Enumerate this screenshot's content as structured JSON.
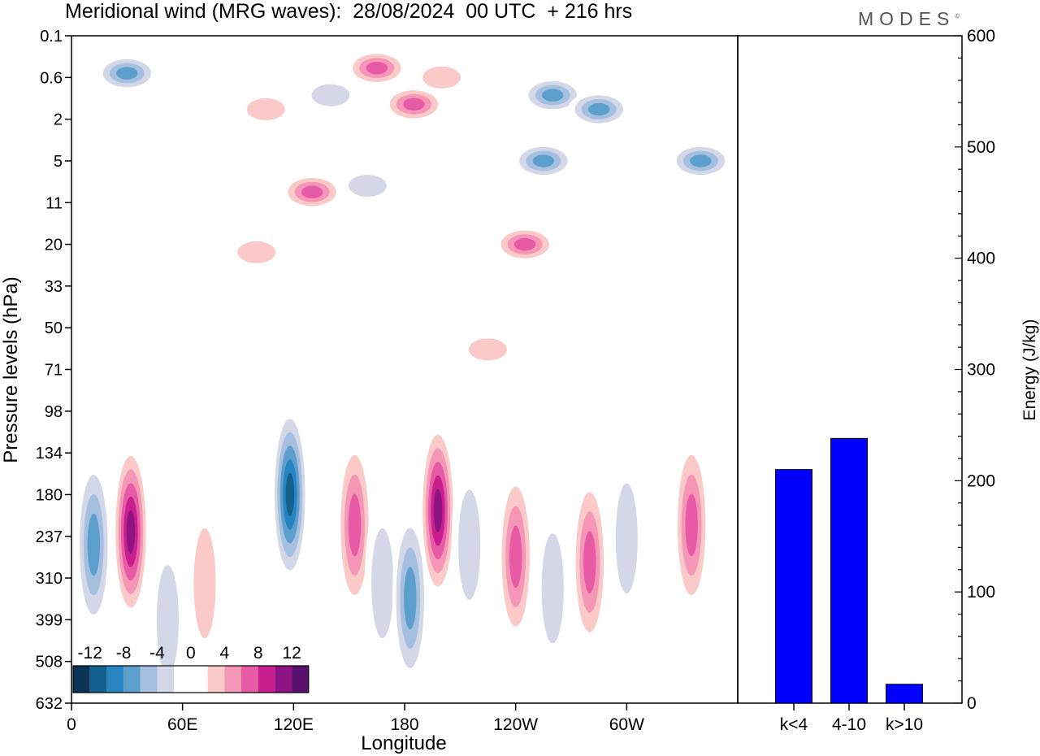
{
  "title": "Meridional wind (MRG waves):  28/08/2024  00 UTC  + 216 hrs",
  "logo": "MODES",
  "logo_mark": "©",
  "chart_data": [
    {
      "type": "heatmap",
      "xlabel": "Longitude",
      "ylabel": "Pressure levels (hPa)",
      "x_ticks": [
        "0",
        "60E",
        "120E",
        "180",
        "120W",
        "60W"
      ],
      "y_ticks": [
        "0.1",
        "0.6",
        "2",
        "5",
        "11",
        "20",
        "33",
        "50",
        "71",
        "98",
        "134",
        "180",
        "237",
        "310",
        "399",
        "508",
        "632"
      ],
      "colorbar": {
        "labels": [
          "-12",
          "-8",
          "-4",
          "0",
          "4",
          "8",
          "12"
        ],
        "colors": [
          "#0b3355",
          "#14608f",
          "#2884c0",
          "#5d9fcc",
          "#a5c0de",
          "#d3d7e8",
          "#ffffff",
          "#ffffff",
          "#fac9c8",
          "#f596b7",
          "#e65aa6",
          "#c81e8e",
          "#8e1484",
          "#5a0f6e"
        ]
      },
      "features": [
        {
          "lon": 30,
          "level": 0.5,
          "value": -8
        },
        {
          "lon": 105,
          "level": 1.5,
          "value": 4
        },
        {
          "lon": 140,
          "level": 1.0,
          "value": -4
        },
        {
          "lon": 165,
          "level": 0.4,
          "value": 8
        },
        {
          "lon": 185,
          "level": 1.3,
          "value": 8
        },
        {
          "lon": 200,
          "level": 0.6,
          "value": 4
        },
        {
          "lon": 260,
          "level": 1.0,
          "value": -8
        },
        {
          "lon": 285,
          "level": 1.5,
          "value": -8
        },
        {
          "lon": 340,
          "level": 5.0,
          "value": -8
        },
        {
          "lon": 255,
          "level": 5.0,
          "value": -8
        },
        {
          "lon": 130,
          "level": 9.0,
          "value": 8
        },
        {
          "lon": 160,
          "level": 8.0,
          "value": -4
        },
        {
          "lon": 245,
          "level": 20.0,
          "value": 8
        },
        {
          "lon": 100,
          "level": 22.0,
          "value": 4
        },
        {
          "lon": 225,
          "level": 60.0,
          "value": 4
        },
        {
          "lon": 12,
          "level": 250.0,
          "value": -8
        },
        {
          "lon": 32,
          "level": 230.0,
          "value": 12
        },
        {
          "lon": 52,
          "level": 400.0,
          "value": -4
        },
        {
          "lon": 72,
          "level": 320.0,
          "value": 4
        },
        {
          "lon": 118,
          "level": 180.0,
          "value": -12
        },
        {
          "lon": 153,
          "level": 220.0,
          "value": 8
        },
        {
          "lon": 168,
          "level": 320.0,
          "value": -4
        },
        {
          "lon": 183,
          "level": 350.0,
          "value": -8
        },
        {
          "lon": 198,
          "level": 200.0,
          "value": 12
        },
        {
          "lon": 215,
          "level": 250.0,
          "value": -4
        },
        {
          "lon": 240,
          "level": 270.0,
          "value": 8
        },
        {
          "lon": 260,
          "level": 330.0,
          "value": -4
        },
        {
          "lon": 280,
          "level": 280.0,
          "value": 8
        },
        {
          "lon": 300,
          "level": 240.0,
          "value": -4
        },
        {
          "lon": 335,
          "level": 220.0,
          "value": 8
        }
      ]
    },
    {
      "type": "bar",
      "ylabel": "Energy (J/kg)",
      "categories": [
        "k<4",
        "4-10",
        "k>10"
      ],
      "values": [
        210,
        238,
        17
      ],
      "ylim": [
        0,
        600
      ],
      "y_ticks": [
        "0",
        "100",
        "200",
        "300",
        "400",
        "500",
        "600"
      ],
      "color": "#0000ff"
    }
  ]
}
